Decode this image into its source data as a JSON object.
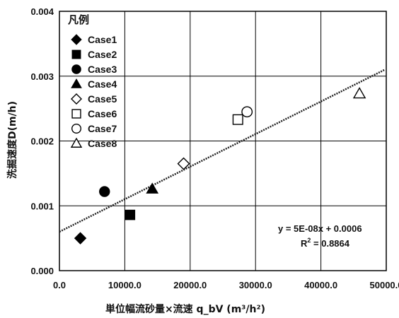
{
  "chart_data": {
    "type": "scatter",
    "xlabel": "単位幅流砂量×流速 q_bV (m³/h²)",
    "ylabel": "洗掘速度D(m/h)",
    "xlim": [
      0,
      50000
    ],
    "ylim": [
      0,
      0.004
    ],
    "x_ticks": [
      "0.0",
      "10000.0",
      "20000.0",
      "30000.0",
      "40000.0",
      "50000.0"
    ],
    "y_ticks": [
      "0.000",
      "0.001",
      "0.002",
      "0.003",
      "0.004"
    ],
    "grid": true,
    "legend": {
      "title": "凡例",
      "placement": "top-left"
    },
    "series": [
      {
        "name": "Case1",
        "marker": "diamond-filled",
        "x": [
          3200
        ],
        "y": [
          0.0005
        ]
      },
      {
        "name": "Case2",
        "marker": "square-filled",
        "x": [
          10800
        ],
        "y": [
          0.00086
        ]
      },
      {
        "name": "Case3",
        "marker": "circle-filled",
        "x": [
          6900
        ],
        "y": [
          0.00122
        ]
      },
      {
        "name": "Case4",
        "marker": "triangle-filled",
        "x": [
          14200
        ],
        "y": [
          0.00126
        ]
      },
      {
        "name": "Case5",
        "marker": "diamond-open",
        "x": [
          19000
        ],
        "y": [
          0.00165
        ]
      },
      {
        "name": "Case6",
        "marker": "square-open",
        "x": [
          27300
        ],
        "y": [
          0.00233
        ]
      },
      {
        "name": "Case7",
        "marker": "circle-open",
        "x": [
          28700
        ],
        "y": [
          0.00245
        ]
      },
      {
        "name": "Case8",
        "marker": "triangle-open",
        "x": [
          45900
        ],
        "y": [
          0.00273
        ]
      }
    ],
    "trendline": {
      "type": "linear",
      "slope": 5e-08,
      "intercept": 0.0006,
      "equation": "y = 5E-08x + 0.0006",
      "r2_label": "R",
      "r2_sup": "2",
      "r2_value": " = 0.8864"
    }
  }
}
